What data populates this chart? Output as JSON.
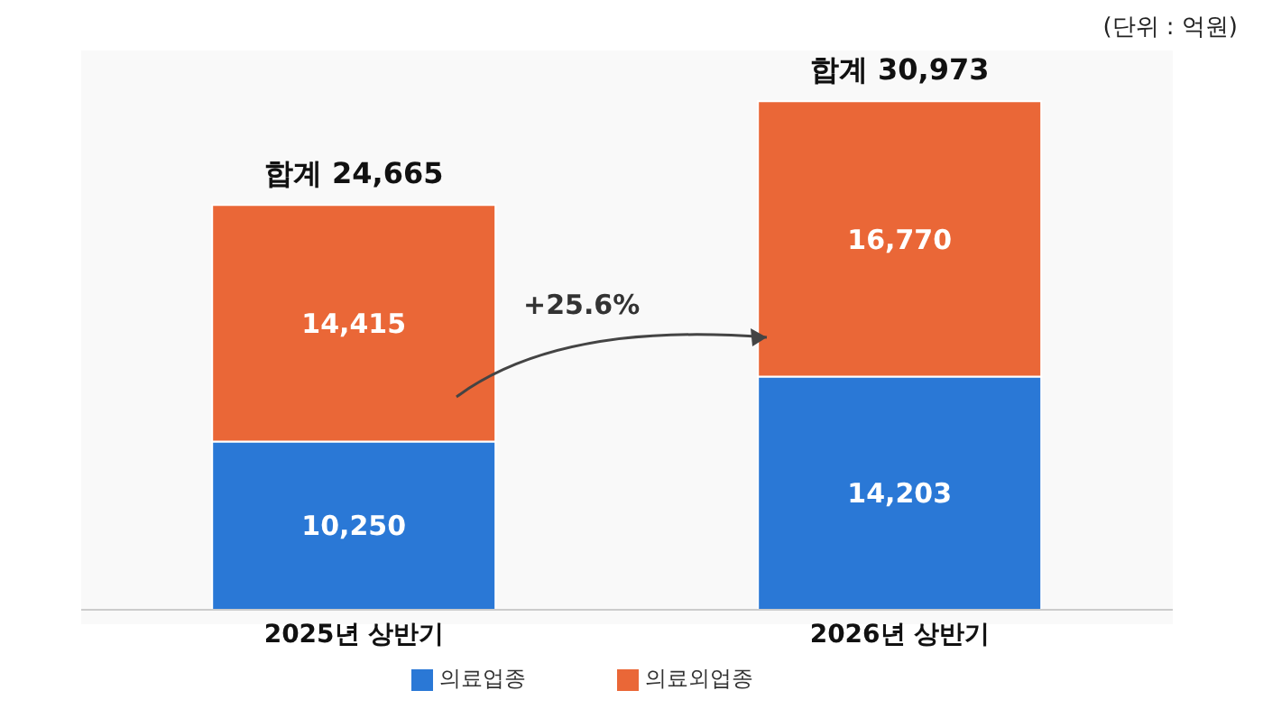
{
  "chart_data": {
    "type": "bar",
    "stacked": true,
    "categories": [
      "2025년 상반기",
      "2026년 상반기"
    ],
    "series": [
      {
        "name": "의료업종",
        "color": "#2a78d6",
        "values": [
          10250,
          14203
        ],
        "value_labels": [
          "10,250",
          "14,203"
        ]
      },
      {
        "name": "의료외업종",
        "color": "#ea6737",
        "values": [
          14415,
          16770
        ],
        "value_labels": [
          "14,415",
          "16,770"
        ]
      }
    ],
    "totals": [
      "합계 24,665",
      "합계 30,973"
    ],
    "legend": "bottom",
    "annotations": [
      "+25.6%",
      "(단위 : 억원)"
    ]
  }
}
